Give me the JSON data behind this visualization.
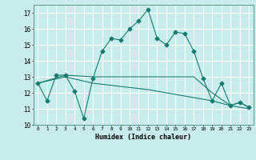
{
  "xlabel": "Humidex (Indice chaleur)",
  "xlim": [
    -0.5,
    23.5
  ],
  "ylim": [
    10,
    17.5
  ],
  "yticks": [
    10,
    11,
    12,
    13,
    14,
    15,
    16,
    17
  ],
  "xticks": [
    0,
    1,
    2,
    3,
    4,
    5,
    6,
    7,
    8,
    9,
    10,
    11,
    12,
    13,
    14,
    15,
    16,
    17,
    18,
    19,
    20,
    21,
    22,
    23
  ],
  "bg_color": "#c8ecec",
  "grid_color": "#aadddd",
  "line_color": "#1a7a6e",
  "lines": [
    {
      "x": [
        0,
        1,
        2,
        3,
        4,
        5,
        6,
        7,
        8,
        9,
        10,
        11,
        12,
        13,
        14,
        15,
        16,
        17,
        18,
        19,
        20,
        21,
        22,
        23
      ],
      "y": [
        12.6,
        11.5,
        13.1,
        13.1,
        12.1,
        10.4,
        12.9,
        14.6,
        15.4,
        15.3,
        16.0,
        16.5,
        17.2,
        15.4,
        15.0,
        15.8,
        15.7,
        14.6,
        12.9,
        11.5,
        12.6,
        11.2,
        11.4,
        11.1
      ],
      "marker": "D",
      "markersize": 2.5
    },
    {
      "x": [
        0,
        3,
        6,
        12,
        17,
        19,
        21,
        22,
        23
      ],
      "y": [
        12.6,
        13.1,
        13.0,
        13.0,
        13.0,
        12.0,
        11.2,
        11.4,
        11.1
      ],
      "marker": null,
      "markersize": 0
    },
    {
      "x": [
        0,
        3,
        6,
        12,
        17,
        19,
        21,
        22,
        23
      ],
      "y": [
        12.6,
        13.0,
        12.6,
        12.2,
        11.7,
        11.5,
        11.2,
        11.1,
        11.0
      ],
      "marker": null,
      "markersize": 0
    }
  ]
}
